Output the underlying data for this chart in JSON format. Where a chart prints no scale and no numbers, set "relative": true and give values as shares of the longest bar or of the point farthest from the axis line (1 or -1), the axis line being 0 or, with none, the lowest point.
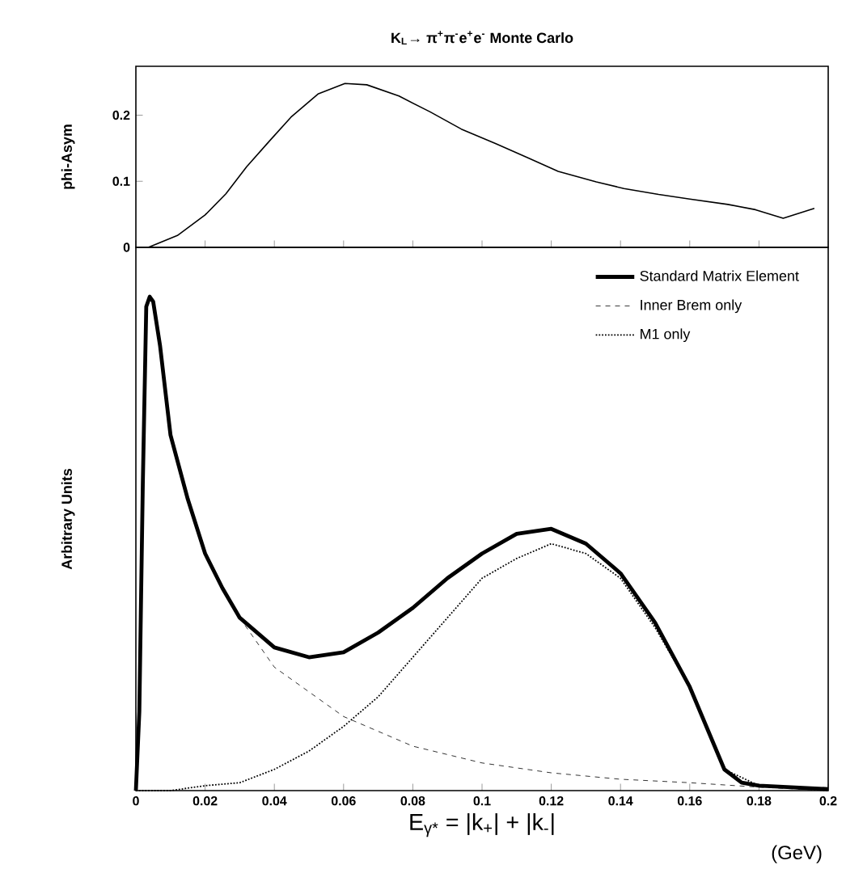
{
  "chart_data": [
    {
      "type": "line",
      "title": "K$_{L}$→ π$^{+}$π$^{-}$e$^{+}$e$^{-}$  Monte Carlo",
      "ylabel": "phi-Asym",
      "xlim": [
        0,
        0.2
      ],
      "xticks": [
        0,
        0.02,
        0.04,
        0.06,
        0.08,
        0.1,
        0.12,
        0.14,
        0.16,
        0.18,
        0.2
      ],
      "ylim": [
        0,
        0.274
      ],
      "yticks": [
        0,
        0.1,
        0.2
      ],
      "tick_labels": "y",
      "series": [
        {
          "color": "#000000",
          "x": [
            0.0036,
            0.012,
            0.02,
            0.026,
            0.032,
            0.0386,
            0.0448,
            0.0526,
            0.0604,
            0.0667,
            0.076,
            0.085,
            0.094,
            0.104,
            0.113,
            0.122,
            0.133,
            0.141,
            0.151,
            0.16,
            0.171,
            0.179,
            0.187,
            0.196
          ],
          "values": [
            0,
            0.018,
            0.049,
            0.081,
            0.122,
            0.161,
            0.197,
            0.232,
            0.248,
            0.246,
            0.229,
            0.205,
            0.179,
            0.157,
            0.136,
            0.115,
            0.099,
            0.089,
            0.08,
            0.073,
            0.065,
            0.057,
            0.044,
            0.059
          ]
        }
      ]
    },
    {
      "type": "line",
      "relative": true,
      "ylabel": "Arbitrary Units",
      "xlabel": "E$_{γ*}$ = |k$_{+}$| + |k$_{-}$|",
      "annotations": [
        "(GeV)"
      ],
      "xlim": [
        0,
        0.2
      ],
      "xticks": [
        0,
        0.02,
        0.04,
        0.06,
        0.08,
        0.1,
        0.12,
        0.14,
        0.16,
        0.18,
        0.2
      ],
      "tick_labels": "x",
      "legend": "top right",
      "series": [
        {
          "name": "Standard Matrix Element",
          "color": "#000000",
          "line_style": "solid",
          "x": [
            0,
            0.001,
            0.002,
            0.003,
            0.004,
            0.005,
            0.007,
            0.01,
            0.015,
            0.02,
            0.025,
            0.03,
            0.04,
            0.05,
            0.06,
            0.07,
            0.08,
            0.09,
            0.1,
            0.11,
            0.12,
            0.13,
            0.14,
            0.15,
            0.16,
            0.17,
            0.175,
            0.18,
            0.2
          ],
          "values": [
            0,
            0.16,
            0.62,
            0.98,
            1,
            0.99,
            0.9,
            0.72,
            0.59,
            0.48,
            0.41,
            0.35,
            0.29,
            0.27,
            0.28,
            0.32,
            0.37,
            0.43,
            0.48,
            0.52,
            0.53,
            0.5,
            0.44,
            0.34,
            0.21,
            0.043,
            0.016,
            0.01,
            0.003
          ]
        },
        {
          "name": "Inner Brem only",
          "color": "#000000",
          "line_style": "dashed",
          "x": [
            0,
            0.001,
            0.002,
            0.003,
            0.004,
            0.005,
            0.007,
            0.01,
            0.015,
            0.02,
            0.025,
            0.03,
            0.04,
            0.05,
            0.06,
            0.07,
            0.08,
            0.1,
            0.12,
            0.14,
            0.16,
            0.18,
            0.2
          ],
          "values": [
            0,
            0.16,
            0.62,
            0.98,
            1,
            0.99,
            0.9,
            0.72,
            0.59,
            0.48,
            0.41,
            0.35,
            0.25,
            0.2,
            0.15,
            0.12,
            0.09,
            0.056,
            0.036,
            0.023,
            0.016,
            0.007,
            0
          ]
        },
        {
          "name": "M1 only",
          "color": "#000000",
          "line_style": "dotted",
          "x": [
            0,
            0.01,
            0.02,
            0.03,
            0.04,
            0.05,
            0.06,
            0.07,
            0.08,
            0.09,
            0.1,
            0.11,
            0.12,
            0.13,
            0.14,
            0.15,
            0.16,
            0.17,
            0.18,
            0.2
          ],
          "values": [
            0,
            0,
            0.01,
            0.016,
            0.043,
            0.08,
            0.13,
            0.19,
            0.27,
            0.35,
            0.43,
            0.47,
            0.5,
            0.48,
            0.43,
            0.33,
            0.21,
            0.043,
            0.01,
            0
          ]
        }
      ]
    }
  ]
}
